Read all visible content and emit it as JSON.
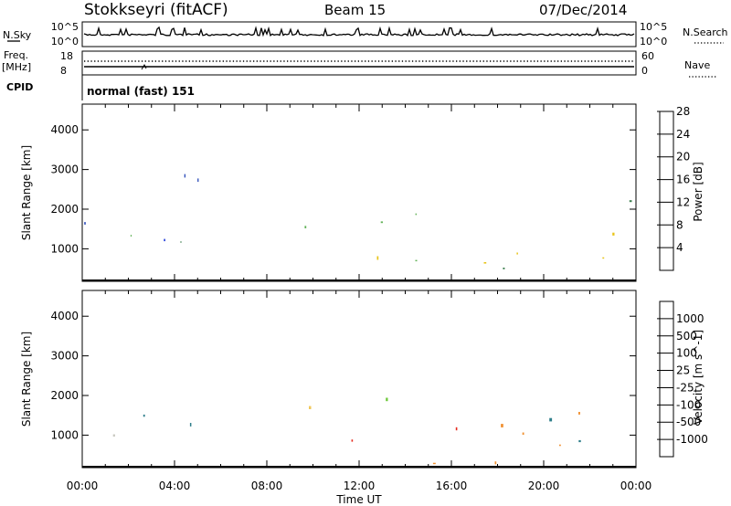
{
  "header": {
    "station": "Stokkseyri (fitACF)",
    "beam": "Beam 15",
    "date": "07/Dec/2014"
  },
  "strip": {
    "nsky_label": "N.Sky",
    "nsky_ticks": [
      "10^5",
      "10^0"
    ],
    "nsearch_label": "N.Search",
    "nsearch_ticks": [
      "10^5",
      "10^0"
    ],
    "freq_label": "Freq.",
    "freq_unit": "[MHz]",
    "freq_ticks": [
      "18",
      "8"
    ],
    "nave_label": "Nave",
    "nave_ticks": [
      "60",
      "0"
    ],
    "cpid_label": "CPID",
    "cpid_value": "normal (fast) 151"
  },
  "chart_data": [
    {
      "type": "heatmap",
      "panel": "power",
      "xlabel": "Time UT",
      "ylabel": "Slant Range [km]",
      "x_ticks": [
        "00:00",
        "04:00",
        "08:00",
        "12:00",
        "16:00",
        "20:00",
        "00:00"
      ],
      "xlim_hours": [
        0,
        24
      ],
      "y_ticks": [
        1000,
        2000,
        3000,
        4000
      ],
      "ylim_km": [
        180,
        4650
      ],
      "colorbar": {
        "label": "Power [dB]",
        "ticks": [
          "4",
          "8",
          "12",
          "16",
          "20",
          "24",
          "28"
        ],
        "colors": [
          "#1f3ad8",
          "#2a4ab8",
          "#3c7e4e",
          "#64b35a",
          "#e8c41a",
          "#f08a1a",
          "#e6301e"
        ]
      },
      "scatter_regions": [
        {
          "t_start": 0.0,
          "t_end": 2.3,
          "r_min": 200,
          "r_max": 1700,
          "level": 10
        },
        {
          "t_start": 1.5,
          "t_end": 4.8,
          "r_min": 200,
          "r_max": 1600,
          "level": 9
        },
        {
          "t_start": 2.5,
          "t_end": 5.0,
          "r_min": 1600,
          "r_max": 3500,
          "level": 5
        },
        {
          "t_start": 9.0,
          "t_end": 13.0,
          "r_min": 1200,
          "r_max": 2300,
          "level": 14
        },
        {
          "t_start": 12.0,
          "t_end": 16.5,
          "r_min": 500,
          "r_max": 2200,
          "level": 16
        },
        {
          "t_start": 15.5,
          "t_end": 18.5,
          "r_min": 250,
          "r_max": 1200,
          "level": 22
        },
        {
          "t_start": 17.5,
          "t_end": 23.5,
          "r_min": 400,
          "r_max": 1800,
          "level": 18
        },
        {
          "t_start": 23.0,
          "t_end": 24.0,
          "r_min": 800,
          "r_max": 2700,
          "level": 12
        }
      ]
    },
    {
      "type": "heatmap",
      "panel": "velocity",
      "xlabel": "Time UT",
      "ylabel": "Slant Range [km]",
      "x_ticks": [
        "00:00",
        "04:00",
        "08:00",
        "12:00",
        "16:00",
        "20:00",
        "00:00"
      ],
      "xlim_hours": [
        0,
        24
      ],
      "y_ticks": [
        1000,
        2000,
        3000,
        4000
      ],
      "ylim_km": [
        180,
        4650
      ],
      "colorbar": {
        "label": "Velocity [m s^-1]",
        "ticks": [
          "1000",
          "500",
          "100",
          "25",
          "-25",
          "-100",
          "-500",
          "-1000"
        ],
        "colors": [
          "#2850c8",
          "#2e7e8a",
          "#3e8e46",
          "#6ec83a",
          "#c8c8c0",
          "#f0c85a",
          "#f09030",
          "#f06020",
          "#e62a1e"
        ]
      },
      "scatter_regions": [
        {
          "t_start": 0.0,
          "t_end": 4.8,
          "r_min": 200,
          "r_max": 1700,
          "velocity": 40
        },
        {
          "t_start": 9.0,
          "t_end": 13.5,
          "r_min": 1300,
          "r_max": 2200,
          "velocity": 0
        },
        {
          "t_start": 11.0,
          "t_end": 18.5,
          "r_min": 250,
          "r_max": 1800,
          "velocity": -300
        },
        {
          "t_start": 17.5,
          "t_end": 22.5,
          "r_min": 600,
          "r_max": 1800,
          "velocity": 0
        },
        {
          "t_start": 19.0,
          "t_end": 23.5,
          "r_min": 700,
          "r_max": 1800,
          "velocity": 400
        }
      ]
    }
  ]
}
